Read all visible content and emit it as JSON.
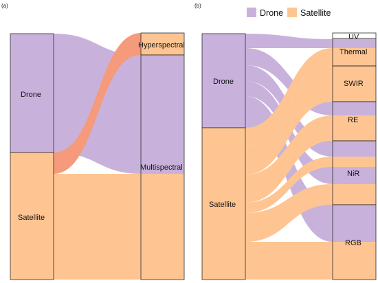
{
  "colors": {
    "drone": "#c8b2dc",
    "satellite": "#fec593",
    "overlap": "#f59a7a",
    "node_stroke": "#2a2a2a"
  },
  "legend": {
    "drone_label": "Drone",
    "satellite_label": "Satellite"
  },
  "panel_a": {
    "tag": "(a)",
    "sources": {
      "drone": "Drone",
      "satellite": "Satellite"
    },
    "targets": {
      "hyperspectral": "Hyperspectral",
      "multispectral": "Multispectral"
    }
  },
  "panel_b": {
    "tag": "(b)",
    "sources": {
      "drone": "Drone",
      "satellite": "Satellite"
    },
    "targets": {
      "uv": "UV",
      "thermal": "Thermal",
      "swir": "SWIR",
      "re": "RE",
      "nir": "NiR",
      "rgb": "RGB"
    }
  }
}
